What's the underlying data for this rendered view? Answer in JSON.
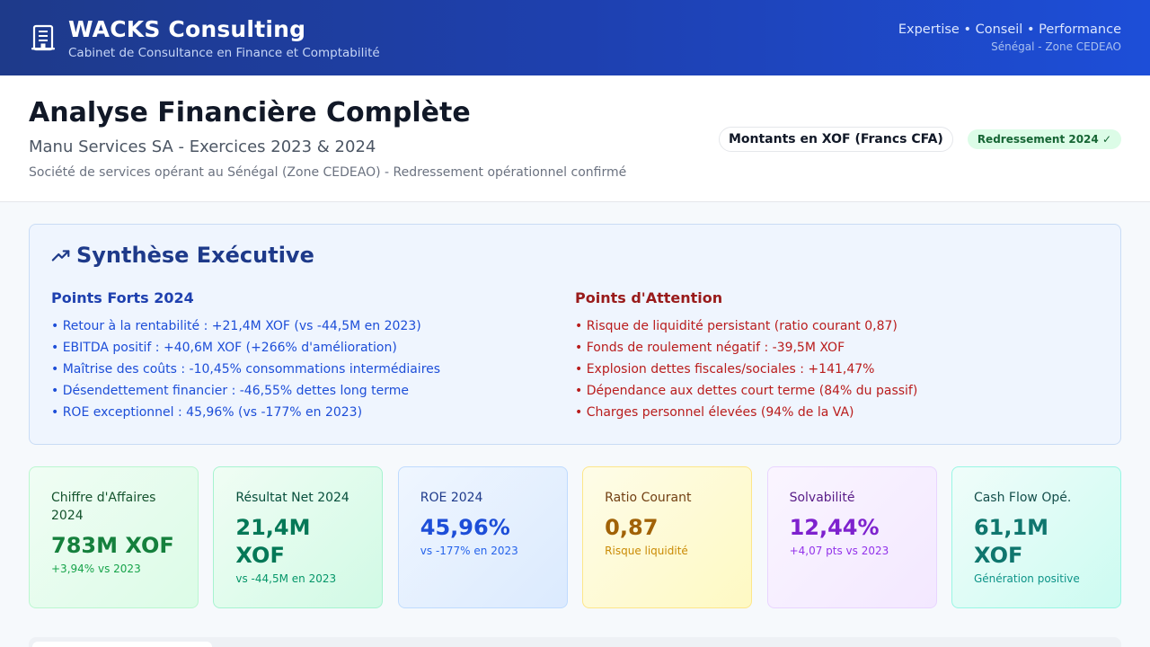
{
  "header": {
    "brand_title": "WACKS Consulting",
    "brand_subtitle": "Cabinet de Consultance en Finance et Comptabilité",
    "tagline": "Expertise • Conseil • Performance",
    "region": "Sénégal - Zone CEDEAO",
    "brand_icon": "building-icon"
  },
  "hero": {
    "title": "Analyse Financière Complète",
    "subtitle": "Manu Services SA - Exercices 2023 & 2024",
    "description": "Société de services opérant au Sénégal (Zone CEDEAO) - Redressement opérationnel confirmé",
    "currency_badge": "Montants en XOF (Francs CFA)",
    "status_badge": "Redressement 2024 ✓"
  },
  "synthesis": {
    "title": "Synthèse Exécutive",
    "icon": "trending-up-icon",
    "strengths": {
      "title": "Points Forts 2024",
      "items": [
        "• Retour à la rentabilité : +21,4M XOF (vs -44,5M en 2023)",
        "• EBITDA positif : +40,6M XOF (+266% d'amélioration)",
        "• Maîtrise des coûts : -10,45% consommations intermédiaires",
        "• Désendettement financier : -46,55% dettes long terme",
        "• ROE exceptionnel : 45,96% (vs -177% en 2023)"
      ]
    },
    "concerns": {
      "title": "Points d'Attention",
      "items": [
        "• Risque de liquidité persistant (ratio courant 0,87)",
        "• Fonds de roulement négatif : -39,5M XOF",
        "• Explosion dettes fiscales/sociales : +141,47%",
        "• Dépendance aux dettes court terme (84% du passif)",
        "• Charges personnel élevées (94% de la VA)"
      ]
    }
  },
  "kpis": [
    {
      "label": "Chiffre d'Affaires 2024",
      "value": "783M XOF",
      "note": "+3,94% vs 2023"
    },
    {
      "label": "Résultat Net 2024",
      "value": "21,4M XOF",
      "note": "vs -44,5M en 2023"
    },
    {
      "label": "ROE 2024",
      "value": "45,96%",
      "note": "vs -177% en 2023"
    },
    {
      "label": "Ratio Courant",
      "value": "0,87",
      "note": "Risque liquidité"
    },
    {
      "label": "Solvabilité",
      "value": "12,44%",
      "note": "+4,07 pts vs 2023"
    },
    {
      "label": "Cash Flow Opé.",
      "value": "61,1M XOF",
      "note": "Génération positive"
    }
  ]
}
